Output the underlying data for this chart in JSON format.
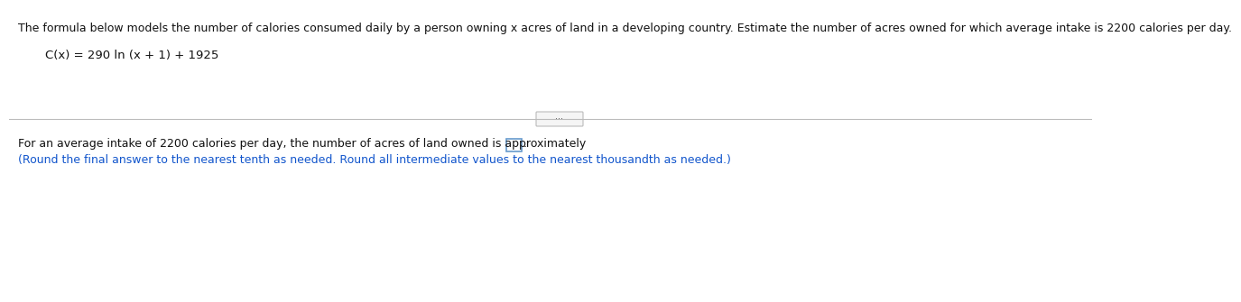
{
  "line1": "The formula below models the number of calories consumed daily by a person owning x acres of land in a developing country. Estimate the number of acres owned for which average intake is 2200 calories per day.",
  "formula": "C(x) = 290 ln (x + 1) + 1925",
  "line3_before": "For an average intake of 2200 calories per day, the number of acres of land owned is approximately ",
  "line3_after": ".",
  "line4": "(Round the final answer to the nearest tenth as needed. Round all intermediate values to the nearest thousandth as needed.)",
  "bg_color": "#ffffff",
  "text_color_black": "#111111",
  "text_color_blue": "#1155cc",
  "divider_color": "#bbbbbb",
  "box_edge_color": "#6699cc",
  "font_size_main": 9.0,
  "font_size_formula": 9.5,
  "font_size_bottom": 9.0,
  "dots_fontsize": 7.0
}
